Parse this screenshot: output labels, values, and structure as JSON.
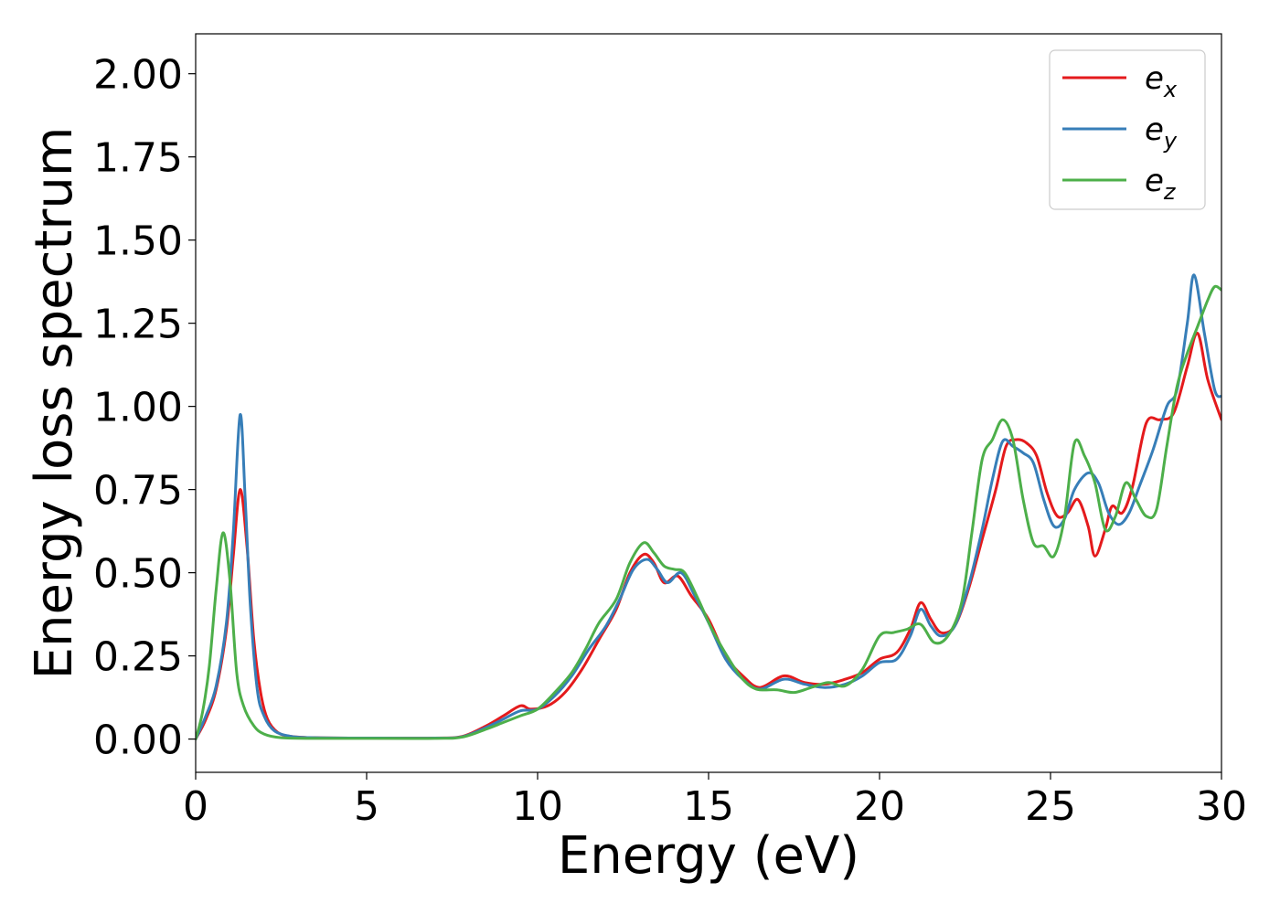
{
  "chart_data": {
    "type": "line",
    "xlabel": "Energy (eV)",
    "ylabel": "Energy loss spectrum",
    "xlim": [
      0,
      30
    ],
    "ylim": [
      -0.1,
      2.12
    ],
    "xticks": [
      0,
      5,
      10,
      15,
      20,
      25,
      30
    ],
    "xtick_labels": [
      "0",
      "5",
      "10",
      "15",
      "20",
      "25",
      "30"
    ],
    "yticks": [
      0.0,
      0.25,
      0.5,
      0.75,
      1.0,
      1.25,
      1.5,
      1.75,
      2.0
    ],
    "ytick_labels": [
      "0.00",
      "0.25",
      "0.50",
      "0.75",
      "1.00",
      "1.25",
      "1.50",
      "1.75",
      "2.00"
    ],
    "grid": false,
    "legend": {
      "position": "top-right",
      "entries": [
        {
          "base": "e",
          "sub": "x",
          "color": "#e41a1c"
        },
        {
          "base": "e",
          "sub": "y",
          "color": "#377eb8"
        },
        {
          "base": "e",
          "sub": "z",
          "color": "#4daf4a"
        }
      ]
    },
    "series": [
      {
        "name": "e_x",
        "color": "#e41a1c",
        "points": [
          [
            0,
            0
          ],
          [
            0.3,
            0.06
          ],
          [
            0.6,
            0.15
          ],
          [
            0.9,
            0.33
          ],
          [
            1.1,
            0.55
          ],
          [
            1.3,
            0.75
          ],
          [
            1.5,
            0.58
          ],
          [
            1.7,
            0.3
          ],
          [
            1.9,
            0.14
          ],
          [
            2.1,
            0.06
          ],
          [
            2.4,
            0.02
          ],
          [
            2.8,
            0.008
          ],
          [
            3.5,
            0.004
          ],
          [
            5,
            0.003
          ],
          [
            7,
            0.003
          ],
          [
            7.8,
            0.008
          ],
          [
            8.5,
            0.04
          ],
          [
            9.0,
            0.07
          ],
          [
            9.5,
            0.1
          ],
          [
            9.8,
            0.09
          ],
          [
            10.3,
            0.1
          ],
          [
            10.8,
            0.14
          ],
          [
            11.3,
            0.21
          ],
          [
            11.8,
            0.3
          ],
          [
            12.3,
            0.39
          ],
          [
            12.7,
            0.5
          ],
          [
            13.1,
            0.555
          ],
          [
            13.4,
            0.53
          ],
          [
            13.7,
            0.47
          ],
          [
            14.1,
            0.49
          ],
          [
            14.5,
            0.43
          ],
          [
            15.0,
            0.36
          ],
          [
            15.5,
            0.25
          ],
          [
            16.0,
            0.19
          ],
          [
            16.5,
            0.155
          ],
          [
            17.2,
            0.19
          ],
          [
            17.8,
            0.17
          ],
          [
            18.4,
            0.165
          ],
          [
            19.0,
            0.18
          ],
          [
            19.5,
            0.2
          ],
          [
            20.0,
            0.24
          ],
          [
            20.5,
            0.26
          ],
          [
            20.9,
            0.33
          ],
          [
            21.2,
            0.41
          ],
          [
            21.5,
            0.36
          ],
          [
            21.8,
            0.32
          ],
          [
            22.2,
            0.34
          ],
          [
            22.6,
            0.45
          ],
          [
            23.0,
            0.6
          ],
          [
            23.4,
            0.75
          ],
          [
            23.7,
            0.88
          ],
          [
            24.0,
            0.9
          ],
          [
            24.3,
            0.89
          ],
          [
            24.6,
            0.85
          ],
          [
            24.9,
            0.74
          ],
          [
            25.2,
            0.67
          ],
          [
            25.5,
            0.68
          ],
          [
            25.8,
            0.72
          ],
          [
            26.1,
            0.64
          ],
          [
            26.3,
            0.55
          ],
          [
            26.6,
            0.63
          ],
          [
            26.8,
            0.7
          ],
          [
            27.1,
            0.68
          ],
          [
            27.4,
            0.76
          ],
          [
            27.8,
            0.95
          ],
          [
            28.2,
            0.96
          ],
          [
            28.6,
            0.98
          ],
          [
            29.0,
            1.12
          ],
          [
            29.3,
            1.22
          ],
          [
            29.6,
            1.08
          ],
          [
            30,
            0.96
          ]
        ]
      },
      {
        "name": "e_y",
        "color": "#377eb8",
        "points": [
          [
            0,
            0
          ],
          [
            0.3,
            0.07
          ],
          [
            0.6,
            0.16
          ],
          [
            0.9,
            0.35
          ],
          [
            1.1,
            0.62
          ],
          [
            1.3,
            0.975
          ],
          [
            1.45,
            0.72
          ],
          [
            1.6,
            0.4
          ],
          [
            1.8,
            0.15
          ],
          [
            2.0,
            0.07
          ],
          [
            2.3,
            0.025
          ],
          [
            2.8,
            0.008
          ],
          [
            3.5,
            0.004
          ],
          [
            5,
            0.003
          ],
          [
            7,
            0.003
          ],
          [
            7.8,
            0.007
          ],
          [
            8.5,
            0.035
          ],
          [
            9.0,
            0.06
          ],
          [
            9.5,
            0.085
          ],
          [
            10.0,
            0.09
          ],
          [
            10.5,
            0.13
          ],
          [
            11.0,
            0.19
          ],
          [
            11.5,
            0.27
          ],
          [
            12.0,
            0.34
          ],
          [
            12.4,
            0.42
          ],
          [
            12.8,
            0.51
          ],
          [
            13.2,
            0.54
          ],
          [
            13.5,
            0.51
          ],
          [
            13.8,
            0.47
          ],
          [
            14.2,
            0.5
          ],
          [
            14.6,
            0.43
          ],
          [
            15.0,
            0.35
          ],
          [
            15.5,
            0.24
          ],
          [
            16.0,
            0.18
          ],
          [
            16.5,
            0.15
          ],
          [
            17.2,
            0.18
          ],
          [
            17.8,
            0.165
          ],
          [
            18.4,
            0.155
          ],
          [
            19.0,
            0.165
          ],
          [
            19.5,
            0.19
          ],
          [
            20.0,
            0.23
          ],
          [
            20.5,
            0.24
          ],
          [
            20.9,
            0.31
          ],
          [
            21.2,
            0.39
          ],
          [
            21.5,
            0.34
          ],
          [
            21.8,
            0.31
          ],
          [
            22.2,
            0.34
          ],
          [
            22.6,
            0.46
          ],
          [
            23.0,
            0.63
          ],
          [
            23.3,
            0.78
          ],
          [
            23.6,
            0.895
          ],
          [
            23.9,
            0.88
          ],
          [
            24.2,
            0.86
          ],
          [
            24.5,
            0.83
          ],
          [
            24.8,
            0.72
          ],
          [
            25.1,
            0.64
          ],
          [
            25.4,
            0.66
          ],
          [
            25.7,
            0.75
          ],
          [
            26.1,
            0.8
          ],
          [
            26.4,
            0.77
          ],
          [
            26.7,
            0.68
          ],
          [
            27.0,
            0.645
          ],
          [
            27.3,
            0.68
          ],
          [
            27.6,
            0.76
          ],
          [
            28.0,
            0.87
          ],
          [
            28.4,
            1.0
          ],
          [
            28.7,
            1.05
          ],
          [
            29.0,
            1.25
          ],
          [
            29.2,
            1.395
          ],
          [
            29.5,
            1.22
          ],
          [
            29.8,
            1.05
          ],
          [
            30,
            1.03
          ]
        ]
      },
      {
        "name": "e_z",
        "color": "#4daf4a",
        "points": [
          [
            0,
            0
          ],
          [
            0.2,
            0.08
          ],
          [
            0.4,
            0.22
          ],
          [
            0.6,
            0.45
          ],
          [
            0.8,
            0.62
          ],
          [
            1.0,
            0.48
          ],
          [
            1.2,
            0.2
          ],
          [
            1.4,
            0.1
          ],
          [
            1.7,
            0.04
          ],
          [
            2.0,
            0.015
          ],
          [
            2.5,
            0.004
          ],
          [
            3.5,
            0.002
          ],
          [
            5,
            0.002
          ],
          [
            7,
            0.002
          ],
          [
            7.8,
            0.006
          ],
          [
            8.5,
            0.03
          ],
          [
            9.0,
            0.05
          ],
          [
            9.5,
            0.07
          ],
          [
            10.0,
            0.09
          ],
          [
            10.5,
            0.14
          ],
          [
            11.0,
            0.2
          ],
          [
            11.4,
            0.27
          ],
          [
            11.8,
            0.35
          ],
          [
            12.3,
            0.42
          ],
          [
            12.7,
            0.53
          ],
          [
            13.1,
            0.59
          ],
          [
            13.4,
            0.56
          ],
          [
            13.7,
            0.52
          ],
          [
            14.0,
            0.51
          ],
          [
            14.3,
            0.5
          ],
          [
            14.7,
            0.42
          ],
          [
            15.1,
            0.33
          ],
          [
            15.6,
            0.24
          ],
          [
            16.0,
            0.18
          ],
          [
            16.4,
            0.15
          ],
          [
            17.0,
            0.148
          ],
          [
            17.5,
            0.14
          ],
          [
            18.0,
            0.155
          ],
          [
            18.5,
            0.17
          ],
          [
            19.0,
            0.16
          ],
          [
            19.5,
            0.21
          ],
          [
            20.0,
            0.31
          ],
          [
            20.4,
            0.32
          ],
          [
            20.8,
            0.33
          ],
          [
            21.2,
            0.345
          ],
          [
            21.6,
            0.29
          ],
          [
            22.0,
            0.31
          ],
          [
            22.4,
            0.41
          ],
          [
            22.7,
            0.62
          ],
          [
            23.0,
            0.84
          ],
          [
            23.3,
            0.9
          ],
          [
            23.6,
            0.96
          ],
          [
            23.9,
            0.9
          ],
          [
            24.2,
            0.72
          ],
          [
            24.5,
            0.59
          ],
          [
            24.8,
            0.58
          ],
          [
            25.1,
            0.55
          ],
          [
            25.4,
            0.66
          ],
          [
            25.7,
            0.89
          ],
          [
            26.0,
            0.85
          ],
          [
            26.3,
            0.77
          ],
          [
            26.6,
            0.63
          ],
          [
            26.9,
            0.67
          ],
          [
            27.2,
            0.77
          ],
          [
            27.5,
            0.72
          ],
          [
            27.8,
            0.67
          ],
          [
            28.1,
            0.69
          ],
          [
            28.4,
            0.88
          ],
          [
            28.7,
            1.06
          ],
          [
            29.0,
            1.16
          ],
          [
            29.3,
            1.24
          ],
          [
            29.6,
            1.32
          ],
          [
            29.8,
            1.36
          ],
          [
            30,
            1.35
          ]
        ]
      }
    ]
  }
}
